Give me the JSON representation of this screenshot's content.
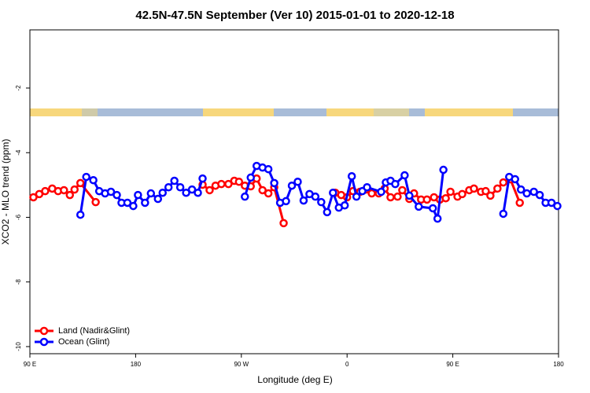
{
  "chart_data": {
    "type": "line",
    "title": "42.5N-47.5N September (Ver 10)   2015-01-01 to 2020-12-18",
    "x_label": "Longitude (deg E)",
    "y_label": "XCO2 - MLO trend (ppm)",
    "xlim": [
      90,
      540
    ],
    "xticks": [
      {
        "value": 90,
        "label": "90 E"
      },
      180,
      {
        "value": 270,
        "label": "90 W"
      },
      {
        "value": 360,
        "label": "0"
      },
      {
        "value": 450,
        "label": "90 E"
      },
      {
        "value": 540,
        "label": "180"
      }
    ],
    "ylim": [
      -10.22,
      -0.2
    ],
    "yticks": [
      -10,
      -8,
      -6,
      -4,
      -2
    ],
    "legend": "bottom-left",
    "series": [
      {
        "name": "Land (Nadir&Glint)",
        "color": "#ff0000",
        "x": [
          93,
          98,
          103,
          109,
          114,
          119,
          124,
          128,
          133,
          146,
          null,
          237,
          243,
          248,
          253,
          259,
          264,
          268,
          273,
          278,
          283,
          288,
          293,
          298,
          306,
          null,
          350,
          355,
          360,
          365,
          371,
          376,
          381,
          387,
          392,
          397,
          403,
          407,
          413,
          417,
          423,
          428,
          434,
          439,
          444,
          448,
          454,
          458,
          464,
          468,
          474,
          478,
          482,
          488,
          493,
          499,
          507
        ],
        "values": [
          -5.38,
          -5.28,
          -5.19,
          -5.11,
          -5.19,
          -5.16,
          -5.31,
          -5.14,
          -4.94,
          -5.53,
          null,
          -4.99,
          -5.16,
          -5.02,
          -4.97,
          -4.97,
          -4.87,
          -4.9,
          -5.02,
          -5.04,
          -4.8,
          -5.16,
          -5.26,
          -5.07,
          -6.18,
          null,
          -5.24,
          -5.31,
          -5.38,
          -5.19,
          -5.21,
          -5.14,
          -5.26,
          -5.26,
          -5.11,
          -5.38,
          -5.36,
          -5.16,
          -5.43,
          -5.26,
          -5.45,
          -5.45,
          -5.38,
          -5.45,
          -5.41,
          -5.21,
          -5.36,
          -5.28,
          -5.16,
          -5.11,
          -5.21,
          -5.19,
          -5.33,
          -5.11,
          -4.92,
          -4.82,
          -5.55
        ]
      },
      {
        "name": "Ocean (Glint)",
        "color": "#0000ff",
        "x": [
          133,
          138,
          144,
          149,
          154,
          159,
          164,
          168,
          173,
          178,
          182,
          188,
          193,
          199,
          203,
          208,
          213,
          218,
          223,
          228,
          233,
          237,
          null,
          273,
          278,
          283,
          288,
          293,
          298,
          303,
          308,
          313,
          318,
          323,
          328,
          333,
          338,
          343,
          348,
          353,
          358,
          364,
          368,
          373,
          377,
          389,
          393,
          397,
          401,
          409,
          413,
          421,
          433,
          437,
          442,
          null,
          493,
          498,
          503,
          508,
          513,
          519,
          524,
          529,
          534,
          539
        ],
        "values": [
          -5.92,
          -4.75,
          -4.85,
          -5.19,
          -5.26,
          -5.21,
          -5.31,
          -5.55,
          -5.55,
          -5.65,
          -5.31,
          -5.55,
          -5.26,
          -5.43,
          -5.24,
          -5.07,
          -4.87,
          -5.07,
          -5.24,
          -5.14,
          -5.24,
          -4.8,
          null,
          -5.36,
          -4.77,
          -4.41,
          -4.46,
          -4.51,
          -4.94,
          -5.55,
          -5.5,
          -5.02,
          -4.9,
          -5.48,
          -5.28,
          -5.36,
          -5.53,
          -5.84,
          -5.24,
          -5.7,
          -5.63,
          -4.73,
          -5.36,
          -5.19,
          -5.07,
          -5.21,
          -4.92,
          -4.87,
          -4.97,
          -4.7,
          -5.33,
          -5.67,
          -5.72,
          -6.04,
          -4.53,
          null,
          -5.89,
          -4.75,
          -4.82,
          -5.14,
          -5.26,
          -5.21,
          -5.31,
          -5.55,
          -5.55,
          -5.65
        ]
      }
    ]
  }
}
